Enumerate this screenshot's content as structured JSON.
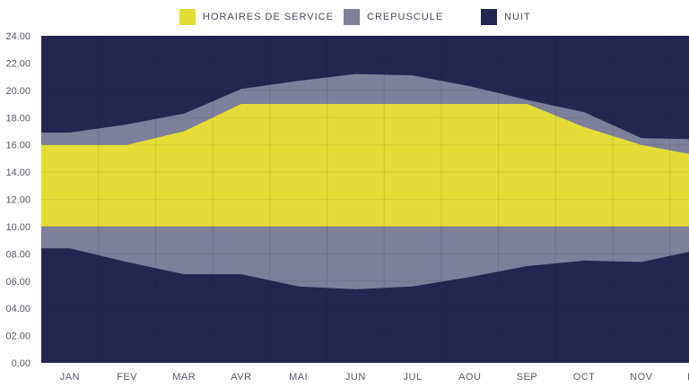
{
  "chart_data": {
    "type": "area",
    "categories": [
      "JAN",
      "FEV",
      "MAR",
      "AVR",
      "MAI",
      "JUN",
      "JUL",
      "AOU",
      "SEP",
      "OCT",
      "NOV",
      "DEC"
    ],
    "ylim": [
      0,
      24
    ],
    "yticks": [
      "0.00",
      "02.00",
      "04.00",
      "06.00",
      "08.00",
      "10.00",
      "12.00",
      "14.00",
      "16.00",
      "18.00",
      "20.00",
      "22.00",
      "24.00"
    ],
    "grid": true,
    "legend_position": "top",
    "series": [
      {
        "name": "HORAIRES DE SERVICE",
        "color": "#e3dd36",
        "lower": [
          10,
          10,
          10,
          10,
          10,
          10,
          10,
          10,
          10,
          10,
          10,
          10
        ],
        "upper": [
          16,
          16,
          17,
          19,
          19,
          19,
          19,
          19,
          19,
          17.3,
          16,
          15.2
        ]
      },
      {
        "name": "CREPUSCULE",
        "color": "#7d7f9b",
        "lower": [
          8.4,
          7.4,
          6.5,
          6.5,
          5.6,
          5.4,
          5.6,
          6.3,
          7.1,
          7.5,
          7.4,
          8.3
        ],
        "upper": [
          16.9,
          17.5,
          18.3,
          20.1,
          20.7,
          21.2,
          21.1,
          20.3,
          19.3,
          18.4,
          16.5,
          16.4
        ]
      },
      {
        "name": "NUIT",
        "color": "#24264f"
      }
    ]
  }
}
